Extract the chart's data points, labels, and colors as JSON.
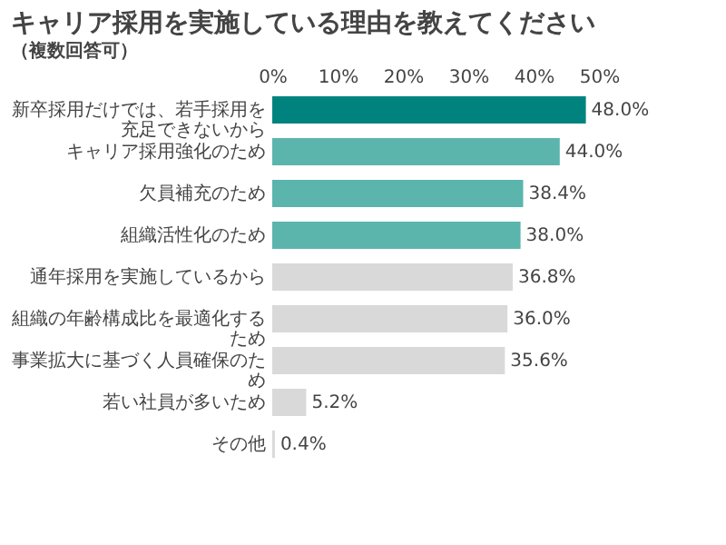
{
  "chart_data": {
    "type": "bar",
    "orientation": "horizontal",
    "title": "キャリア採用を実施している理由を教えてください",
    "subtitle": "（複数回答可）",
    "categories": [
      "新卒採用だけでは、若手採用を充足できないから",
      "キャリア採用強化のため",
      "欠員補充のため",
      "組織活性化のため",
      "通年採用を実施しているから",
      "組織の年齢構成比を最適化するため",
      "事業拡大に基づく人員確保のため",
      "若い社員が多いため",
      "その他"
    ],
    "values": [
      48.0,
      44.0,
      38.4,
      38.0,
      36.8,
      36.0,
      35.6,
      5.2,
      0.4
    ],
    "colors": [
      "#00837f",
      "#5bb5ad",
      "#5bb5ad",
      "#5bb5ad",
      "#d9d9d9",
      "#d9d9d9",
      "#d9d9d9",
      "#d9d9d9",
      "#d9d9d9"
    ],
    "value_labels": [
      "48.0%",
      "44.0%",
      "38.4%",
      "38.0%",
      "36.8%",
      "36.0%",
      "35.6%",
      "5.2%",
      "0.4%"
    ],
    "xlim": [
      0,
      50
    ],
    "xticks": [
      {
        "value": 0,
        "label": "0%"
      },
      {
        "value": 10,
        "label": "10%"
      },
      {
        "value": 20,
        "label": "20%"
      },
      {
        "value": 30,
        "label": "30%"
      },
      {
        "value": 40,
        "label": "40%"
      },
      {
        "value": 50,
        "label": "50%"
      }
    ],
    "grid": false
  }
}
